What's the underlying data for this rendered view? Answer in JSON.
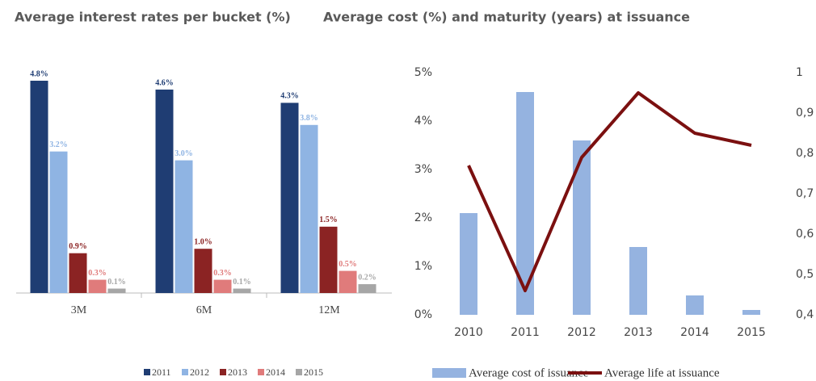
{
  "chart_data": [
    {
      "type": "bar",
      "title": "Average interest rates per bucket (%)",
      "categories": [
        "3M",
        "6M",
        "12M"
      ],
      "series": [
        {
          "name": "2011",
          "color": "#1f3d73",
          "values": [
            4.8,
            4.6,
            4.3
          ],
          "value_labels": [
            "4.8%",
            "4.6%",
            "4.3%"
          ]
        },
        {
          "name": "2012",
          "color": "#8fb4e3",
          "values": [
            3.2,
            3.0,
            3.8
          ],
          "value_labels": [
            "3.2%",
            "3.0%",
            "3.8%"
          ]
        },
        {
          "name": "2013",
          "color": "#8b2323",
          "values": [
            0.9,
            1.0,
            1.5
          ],
          "value_labels": [
            "0.9%",
            "1.0%",
            "1.5%"
          ]
        },
        {
          "name": "2014",
          "color": "#e07b7b",
          "values": [
            0.3,
            0.3,
            0.5
          ],
          "value_labels": [
            "0.3%",
            "0.3%",
            "0.5%"
          ]
        },
        {
          "name": "2015",
          "color": "#a6a6a6",
          "values": [
            0.1,
            0.1,
            0.2
          ],
          "value_labels": [
            "0.1%",
            "0.1%",
            "0.2%"
          ]
        }
      ],
      "legend": "bottom"
    },
    {
      "type": "bar_line",
      "title": "Average cost (%) and maturity (years) at issuance",
      "categories": [
        "2010",
        "2011",
        "2012",
        "2013",
        "2014",
        "2015"
      ],
      "series": [
        {
          "name": "Average cost of issuance",
          "color": "#95b3e0",
          "type": "bar",
          "values": [
            2.1,
            4.6,
            3.6,
            1.4,
            0.4,
            0.1
          ]
        },
        {
          "name": "Average life at issuance",
          "color": "#7b1010",
          "type": "line",
          "axis": "y2",
          "values": [
            0.77,
            0.46,
            0.79,
            0.95,
            0.85,
            0.82
          ]
        }
      ],
      "ylim": [
        0,
        5
      ],
      "yticks": [
        {
          "value": 0,
          "label": "0%"
        },
        {
          "value": 1,
          "label": "1%"
        },
        {
          "value": 2,
          "label": "2%"
        },
        {
          "value": 3,
          "label": "3%"
        },
        {
          "value": 4,
          "label": "4%"
        },
        {
          "value": 5,
          "label": "5%"
        }
      ],
      "y2lim": [
        0.4,
        1
      ],
      "y2ticks": [
        {
          "value": 0.4,
          "label": "0,4"
        },
        {
          "value": 0.5,
          "label": "0,5"
        },
        {
          "value": 0.6,
          "label": "0,6"
        },
        {
          "value": 0.7,
          "label": "0,7"
        },
        {
          "value": 0.8,
          "label": "0,8"
        },
        {
          "value": 0.9,
          "label": "0,9"
        },
        1
      ],
      "legend": "bottom"
    }
  ]
}
